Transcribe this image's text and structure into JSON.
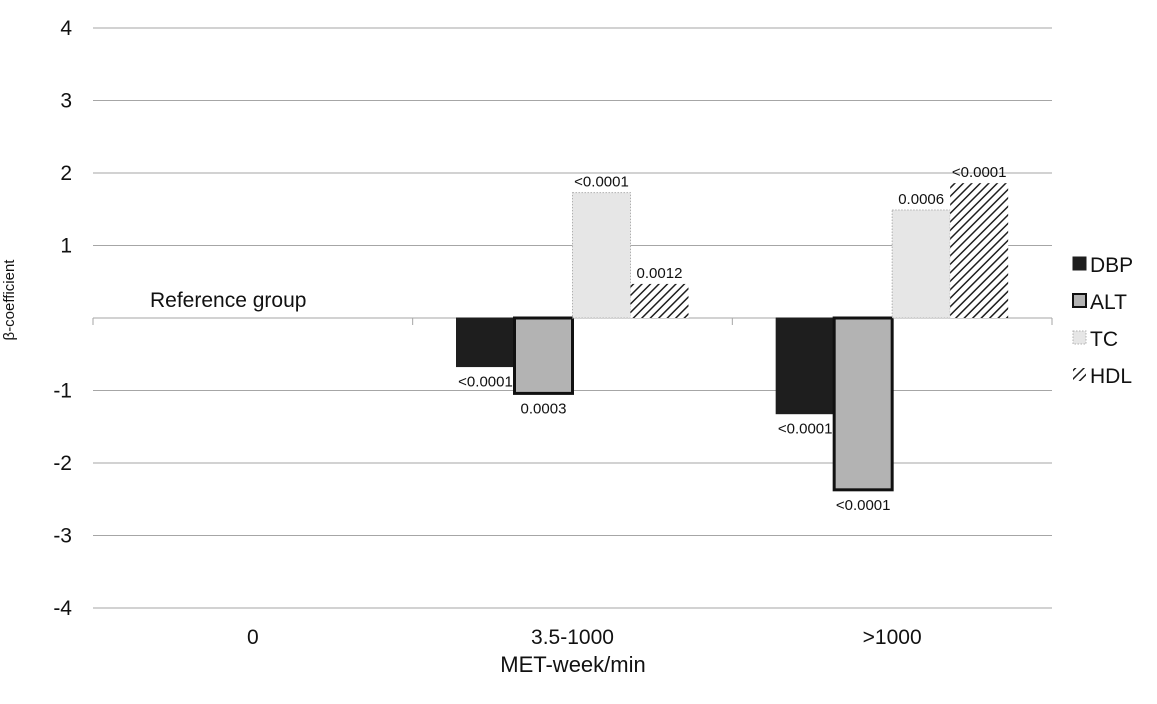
{
  "chart_data": {
    "type": "bar",
    "xlabel": "MET-week/min",
    "ylabel": "β-coefficient",
    "ylim": [
      -4,
      4
    ],
    "yticks": [
      "4",
      "3",
      "2",
      "1",
      "",
      "-1",
      "-2",
      "-3",
      "-4"
    ],
    "ytick_values": [
      4,
      3,
      2,
      1,
      0,
      -1,
      -2,
      -3,
      -4
    ],
    "grid": true,
    "legend_position": "right",
    "categories": [
      "0",
      "3.5-1000",
      ">1000"
    ],
    "annotation": "Reference group",
    "series": [
      {
        "name": "DBP",
        "values": [
          null,
          -0.67,
          -1.32
        ],
        "p_values": [
          "",
          "<0.0001",
          "<0.0001"
        ],
        "color": "#1e1e1e",
        "pattern": "solid"
      },
      {
        "name": "ALT",
        "values": [
          null,
          -1.04,
          -2.37
        ],
        "p_values": [
          "",
          "0.0003",
          "<0.0001"
        ],
        "color": "#b3b3b3",
        "pattern": "outlined"
      },
      {
        "name": "TC",
        "values": [
          null,
          1.73,
          1.49
        ],
        "p_values": [
          "",
          "<0.0001",
          "0.0006"
        ],
        "color": "#e6e6e6",
        "pattern": "dotted"
      },
      {
        "name": "HDL",
        "values": [
          null,
          0.47,
          1.86
        ],
        "p_values": [
          "",
          "0.0012",
          "<0.0001"
        ],
        "color": "#222222",
        "pattern": "hatched"
      }
    ]
  }
}
